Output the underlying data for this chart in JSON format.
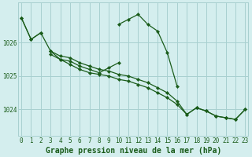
{
  "title": "Graphe pression niveau de la mer (hPa)",
  "bg_color": "#d4eeee",
  "grid_color": "#a8d0d0",
  "line_color": "#1a5c1a",
  "x_ticks": [
    0,
    1,
    2,
    3,
    4,
    5,
    6,
    7,
    8,
    9,
    10,
    11,
    12,
    13,
    14,
    15,
    16,
    17,
    18,
    19,
    20,
    21,
    22,
    23
  ],
  "y_ticks": [
    1024,
    1025,
    1026
  ],
  "ylim": [
    1023.2,
    1027.2
  ],
  "xlim": [
    -0.3,
    23.3
  ],
  "series": [
    [
      1026.75,
      1026.1,
      1026.3,
      null,
      null,
      null,
      null,
      null,
      null,
      null,
      1026.55,
      1026.7,
      1026.85,
      1026.55,
      1026.35,
      1025.7,
      1024.7,
      null,
      null,
      null,
      null,
      null,
      null,
      null
    ],
    [
      1026.75,
      1026.1,
      1026.3,
      1025.75,
      1025.6,
      1025.55,
      1025.4,
      1025.3,
      1025.2,
      1025.15,
      1025.05,
      1025.0,
      1024.9,
      1024.8,
      1024.65,
      1024.5,
      1024.25,
      1023.85,
      1024.05,
      1023.95,
      1023.8,
      1023.75,
      1023.7,
      1024.0
    ],
    [
      null,
      null,
      null,
      1025.75,
      1025.5,
      1025.45,
      1025.3,
      1025.2,
      1025.1,
      1025.25,
      1025.4,
      null,
      null,
      null,
      null,
      null,
      null,
      null,
      null,
      null,
      null,
      null,
      null,
      null
    ],
    [
      null,
      null,
      null,
      1025.65,
      1025.5,
      1025.35,
      1025.2,
      1025.1,
      1025.05,
      1025.0,
      1024.9,
      1024.85,
      1024.75,
      1024.65,
      1024.5,
      1024.35,
      1024.15,
      1023.85,
      1024.05,
      1023.95,
      1023.8,
      1023.75,
      1023.7,
      1024.0
    ]
  ],
  "marker": "D",
  "marker_size": 2.2,
  "line_width": 0.9,
  "tick_fontsize": 5.5,
  "title_fontsize": 7.0,
  "title_fontweight": "bold"
}
